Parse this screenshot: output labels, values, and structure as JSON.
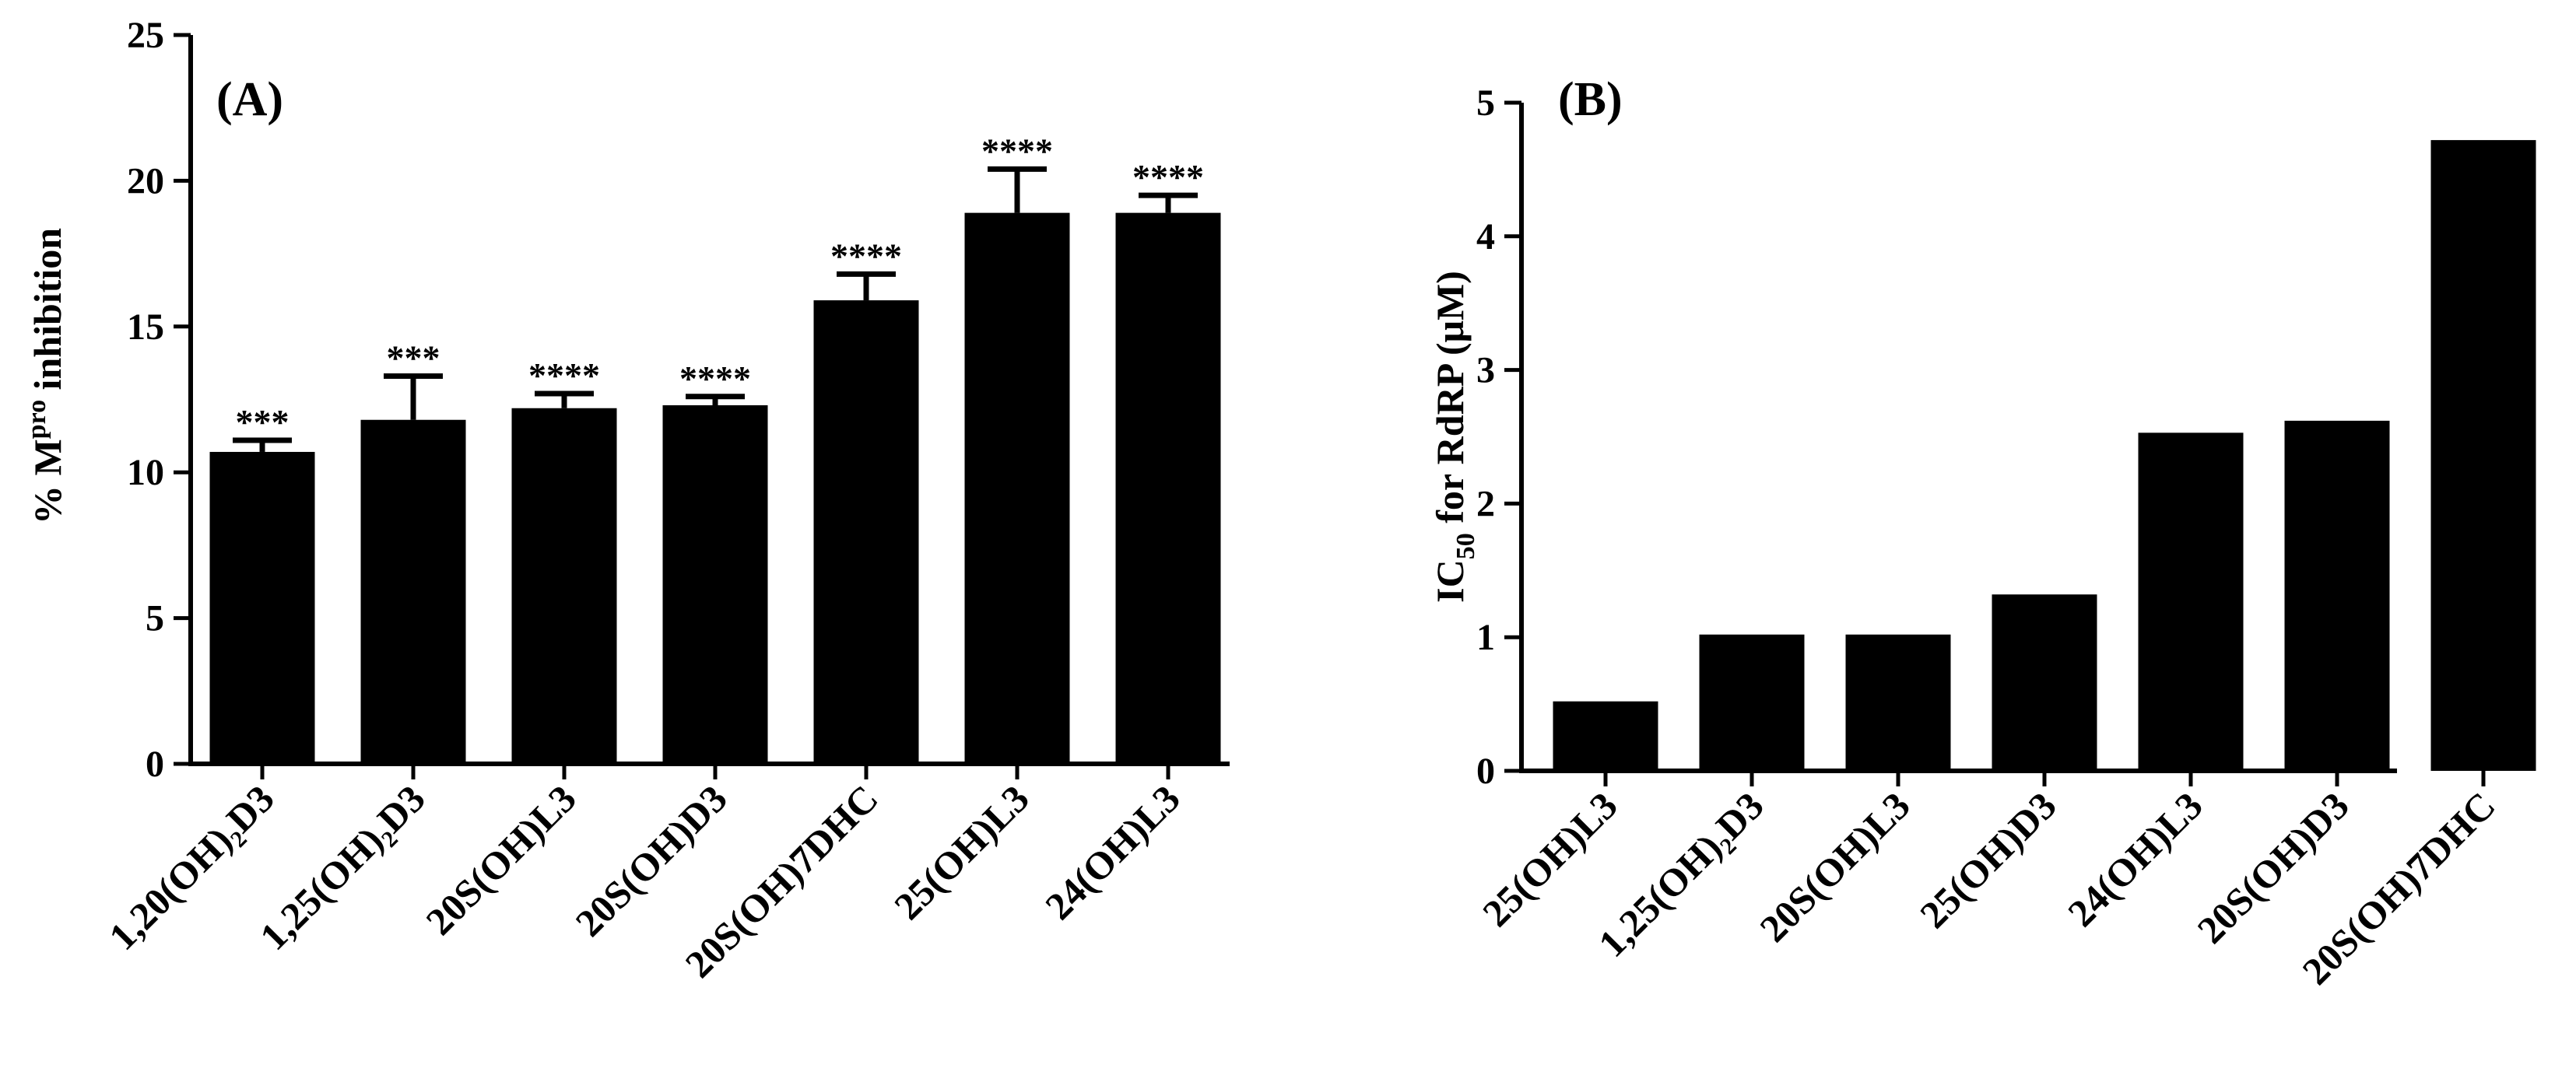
{
  "chart_data": [
    {
      "panel_label": "(A)",
      "type": "bar",
      "ylabel": {
        "prefix": "% M",
        "superscript": "pro",
        "suffix": " inhibition"
      },
      "ylim": [
        0,
        25
      ],
      "yticks": [
        "0",
        "5",
        "10",
        "15",
        "20",
        "25"
      ],
      "ytick_values": [
        0,
        5,
        10,
        15,
        20,
        25
      ],
      "categories": [
        "1,20(OH)₂D3",
        "1,25(OH)₂D3",
        "20S(OH)L3",
        "20S(OH)D3",
        "20S(OH)7DHC",
        "25(OH)L3",
        "24(OH)L3"
      ],
      "values": [
        10.7,
        11.8,
        12.2,
        12.3,
        15.9,
        18.9,
        18.9
      ],
      "errors": [
        0.4,
        1.5,
        0.5,
        0.3,
        0.9,
        1.5,
        0.6
      ],
      "annotations": [
        "***",
        "***",
        "****",
        "****",
        "****",
        "****",
        "****"
      ],
      "grid": false,
      "bar_color": "#000000"
    },
    {
      "panel_label": "(B)",
      "type": "bar",
      "ylabel": {
        "prefix": "IC",
        "subscript": "50",
        "suffix": " for RdRP (μM)"
      },
      "ylim": [
        0,
        5
      ],
      "yticks": [
        "0",
        "1",
        "2",
        "3",
        "4",
        "5"
      ],
      "ytick_values": [
        0,
        1,
        2,
        3,
        4,
        5
      ],
      "categories": [
        "25(OH)L3",
        "1,25(OH)₂D3",
        "20S(OH)L3",
        "25(OH)D3",
        "24(OH)L3",
        "20S(OH)D3",
        "20S(OH)7DHC"
      ],
      "values": [
        0.52,
        1.02,
        1.02,
        1.32,
        2.53,
        2.62,
        4.72
      ],
      "grid": false,
      "bar_color": "#000000"
    }
  ]
}
